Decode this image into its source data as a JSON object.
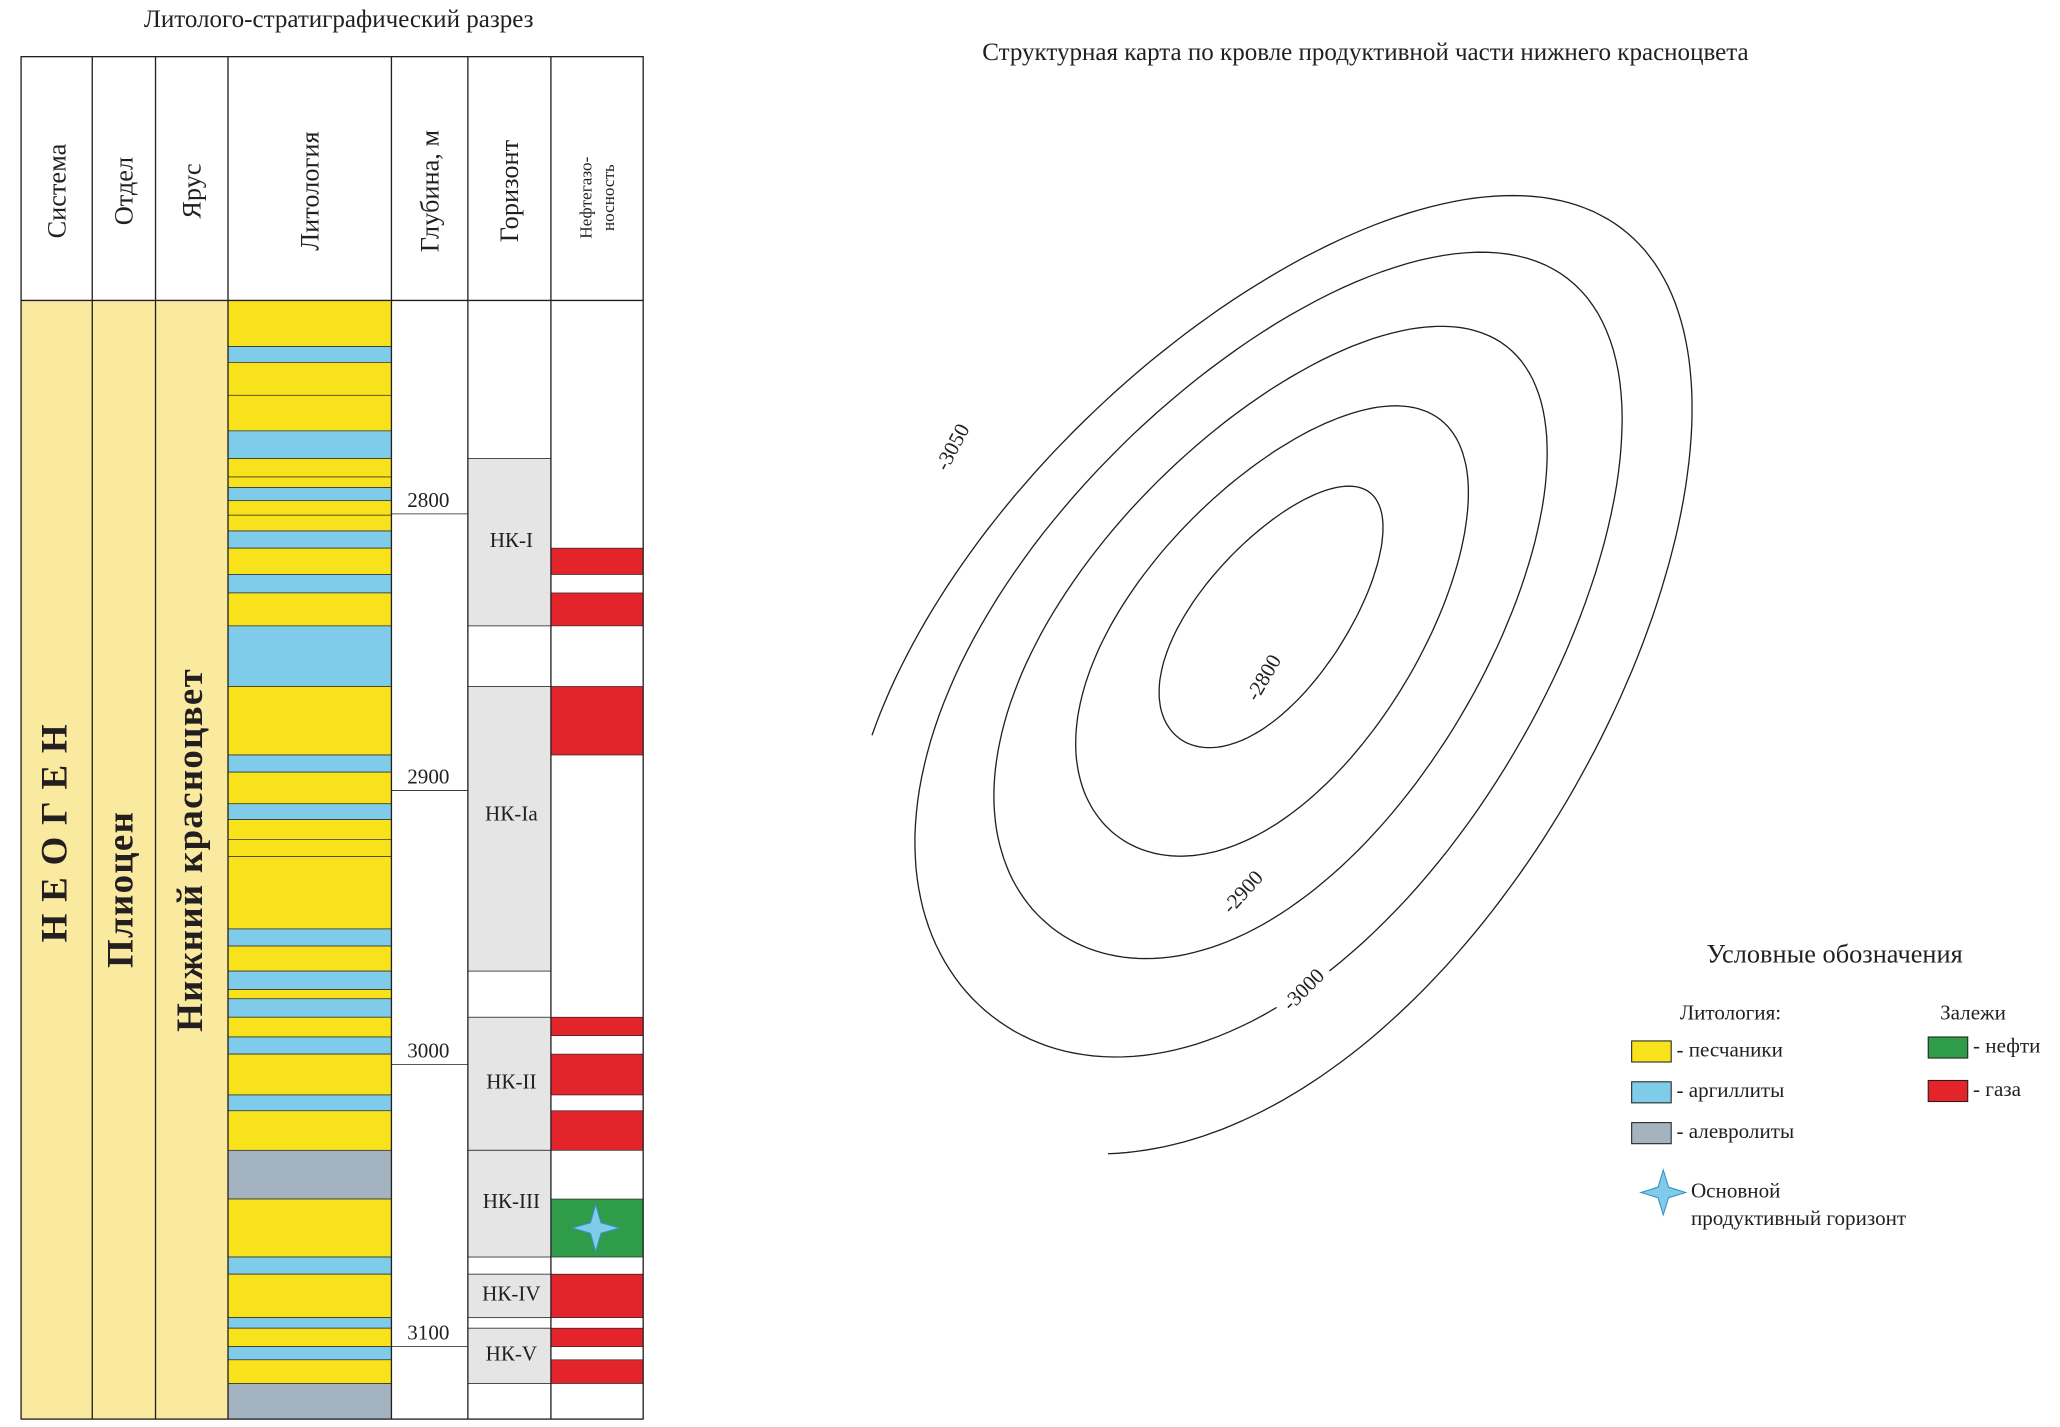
{
  "section": {
    "title": "Литолого-стратиграфический разрез",
    "columns": [
      "Система",
      "Отдел",
      "Ярус",
      "Литология",
      "Глубина, м",
      "Горизонт"
    ],
    "oil_gas_header": [
      "Нефтегазо-",
      "носность"
    ],
    "system": "Н Е О Г Е Н",
    "series": "Плиоцен",
    "stage": "Нижний красноцвет",
    "depths": [
      "2800",
      "2900",
      "3000",
      "3100"
    ],
    "horizons": [
      "НК-I",
      "НК-Ia",
      "НК-II",
      "НК-III",
      "НК-IV",
      "НК-V"
    ]
  },
  "map": {
    "title": "Структурная карта по кровле продуктивной части нижнего красноцвета",
    "contour_labels": [
      "-3050",
      "-2800",
      "-2900",
      "-3000"
    ]
  },
  "legend": {
    "title": "Условные обозначения",
    "lithology_title": "Литология:",
    "lithology": [
      "- песчаники",
      "- аргиллиты",
      "- алевролиты"
    ],
    "deposits_title": "Залежи",
    "deposits": [
      "- нефти",
      "- газа"
    ],
    "main_horizon": [
      "Основной",
      "продуктивный горизонт"
    ]
  }
}
